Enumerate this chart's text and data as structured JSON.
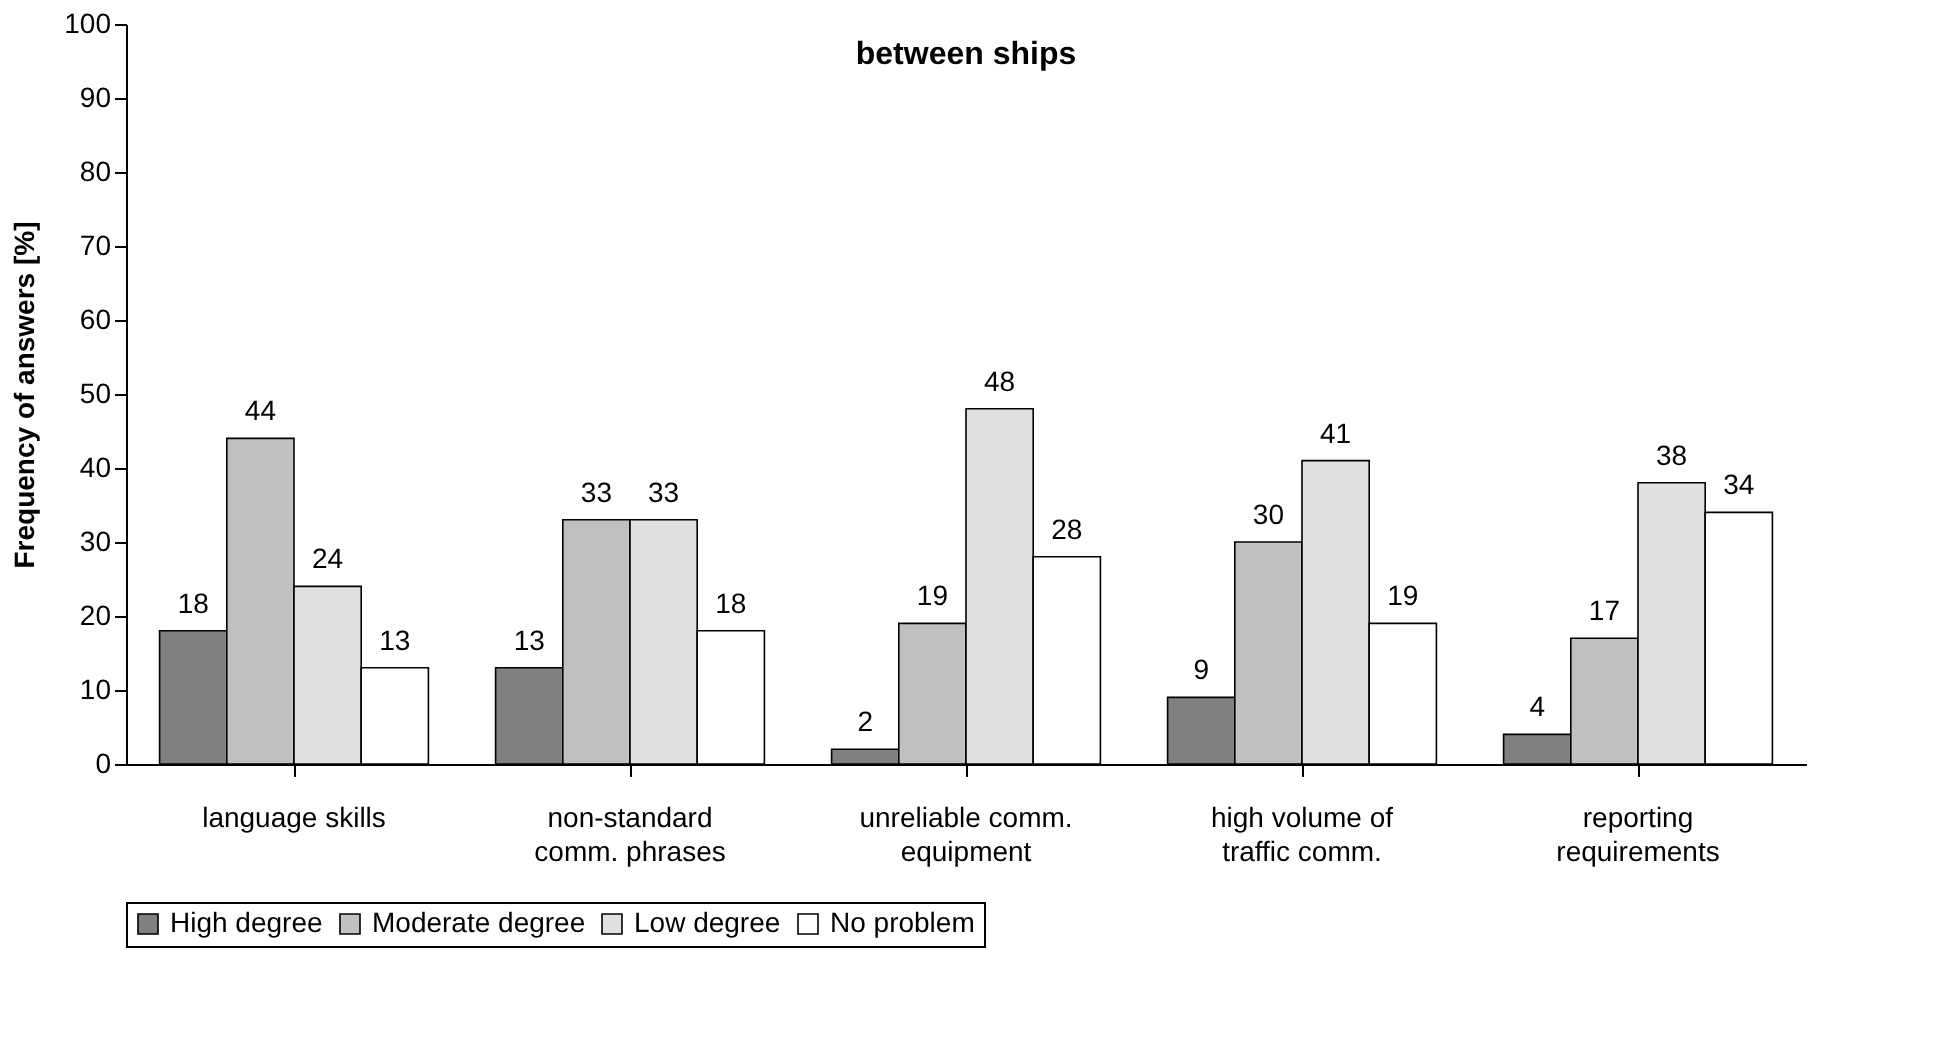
{
  "chart_data": {
    "type": "bar",
    "title": "between ships",
    "ylabel": "Frequency of answers [%]",
    "categories": [
      "language skills",
      "non-standard\ncomm. phrases",
      "unreliable comm.\nequipment",
      "high volume of\ntraffic comm.",
      "reporting\nrequirements"
    ],
    "series": [
      {
        "name": "High degree",
        "color": "#808080",
        "values": [
          18,
          13,
          2,
          9,
          4
        ]
      },
      {
        "name": "Moderate degree",
        "color": "#c0c0c0",
        "values": [
          44,
          33,
          19,
          30,
          17
        ]
      },
      {
        "name": "Low degree",
        "color": "#e0e0e0",
        "values": [
          24,
          33,
          48,
          41,
          38
        ]
      },
      {
        "name": "No problem",
        "color": "#ffffff",
        "values": [
          13,
          18,
          28,
          19,
          34
        ]
      }
    ],
    "ylim": [
      0,
      100
    ],
    "yticks": [
      0,
      10,
      20,
      30,
      40,
      50,
      60,
      70,
      80,
      90,
      100
    ],
    "grid": false,
    "legend": "bottom",
    "data_labels": true
  }
}
